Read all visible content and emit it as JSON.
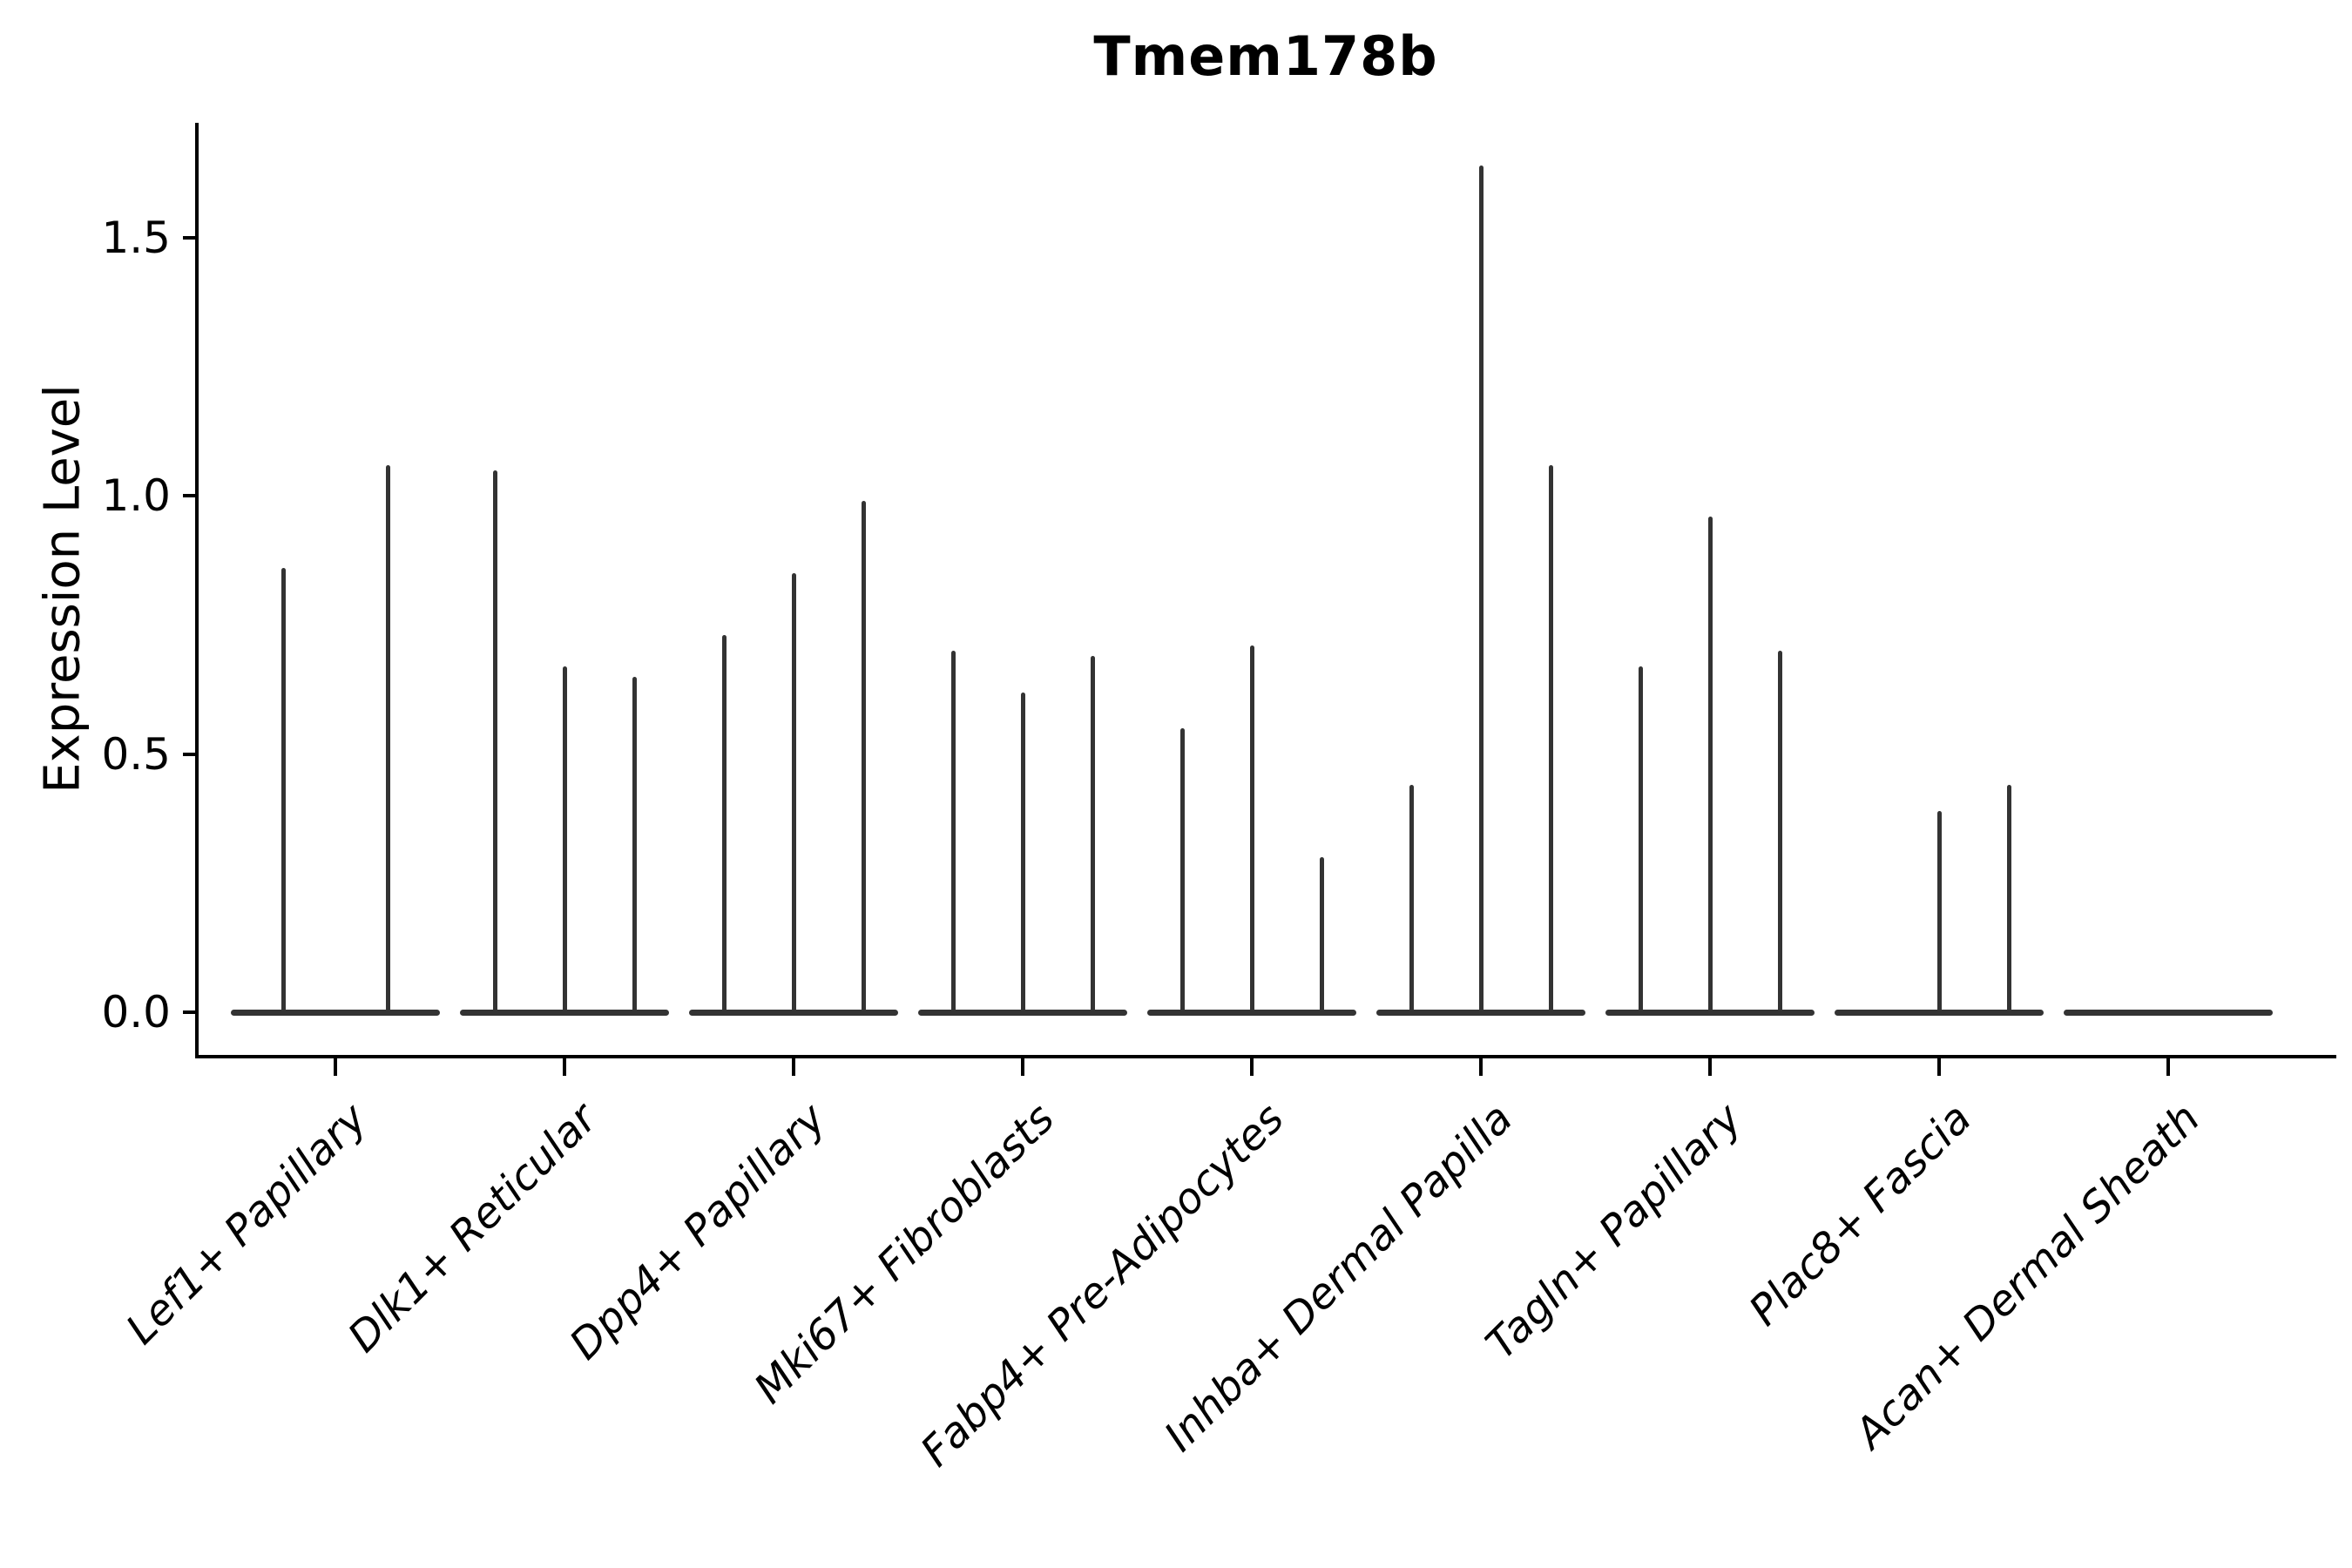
{
  "title": "Tmem178b",
  "ylabel": "Expression Level",
  "colors": {
    "violin": "#333333",
    "axis": "#000000",
    "background": "#ffffff"
  },
  "chart_data": {
    "type": "violin",
    "title": "Tmem178b",
    "xlabel": "",
    "ylabel": "Expression Level",
    "ylim": [
      0,
      1.72
    ],
    "yticks": [
      0.0,
      0.5,
      1.0,
      1.5
    ],
    "ytick_labels": [
      "0.0",
      "0.5",
      "1.0",
      "1.5"
    ],
    "grid": false,
    "legend": "none",
    "note": "Violin bodies are collapsed flat at expression 0; each violin shows only a thin vertical density spike reaching its maximum expression value.",
    "categories": [
      "Lef1+ Papillary",
      "Dlk1+ Reticular",
      "Dpp4+ Papillary",
      "Mki67+ Fibroblasts",
      "Fabp4+ Pre-Adipocytes",
      "Inhba+ Dermal Papilla",
      "Tagln+ Papillary",
      "Plac8+ Fascia",
      "Acan+ Dermal Sheath"
    ],
    "groups": [
      {
        "label": "Lef1+ Papillary",
        "violin_max": [
          0.86,
          1.06
        ]
      },
      {
        "label": "Dlk1+ Reticular",
        "violin_max": [
          1.05,
          0.67,
          0.65
        ]
      },
      {
        "label": "Dpp4+ Papillary",
        "violin_max": [
          0.73,
          0.85,
          0.99
        ]
      },
      {
        "label": "Mki67+ Fibroblasts",
        "violin_max": [
          0.7,
          0.62,
          0.69
        ]
      },
      {
        "label": "Fabp4+ Pre-Adipocytes",
        "violin_max": [
          0.55,
          0.71,
          0.3
        ]
      },
      {
        "label": "Inhba+ Dermal Papilla",
        "violin_max": [
          0.44,
          1.64,
          1.06
        ]
      },
      {
        "label": "Tagln+ Papillary",
        "violin_max": [
          0.67,
          0.96,
          0.7
        ]
      },
      {
        "label": "Plac8+ Fascia",
        "violin_max": [
          0.0,
          0.39,
          0.44
        ]
      },
      {
        "label": "Acan+ Dermal Sheath",
        "violin_max": [
          0.0,
          0.0,
          0.0
        ]
      }
    ]
  }
}
